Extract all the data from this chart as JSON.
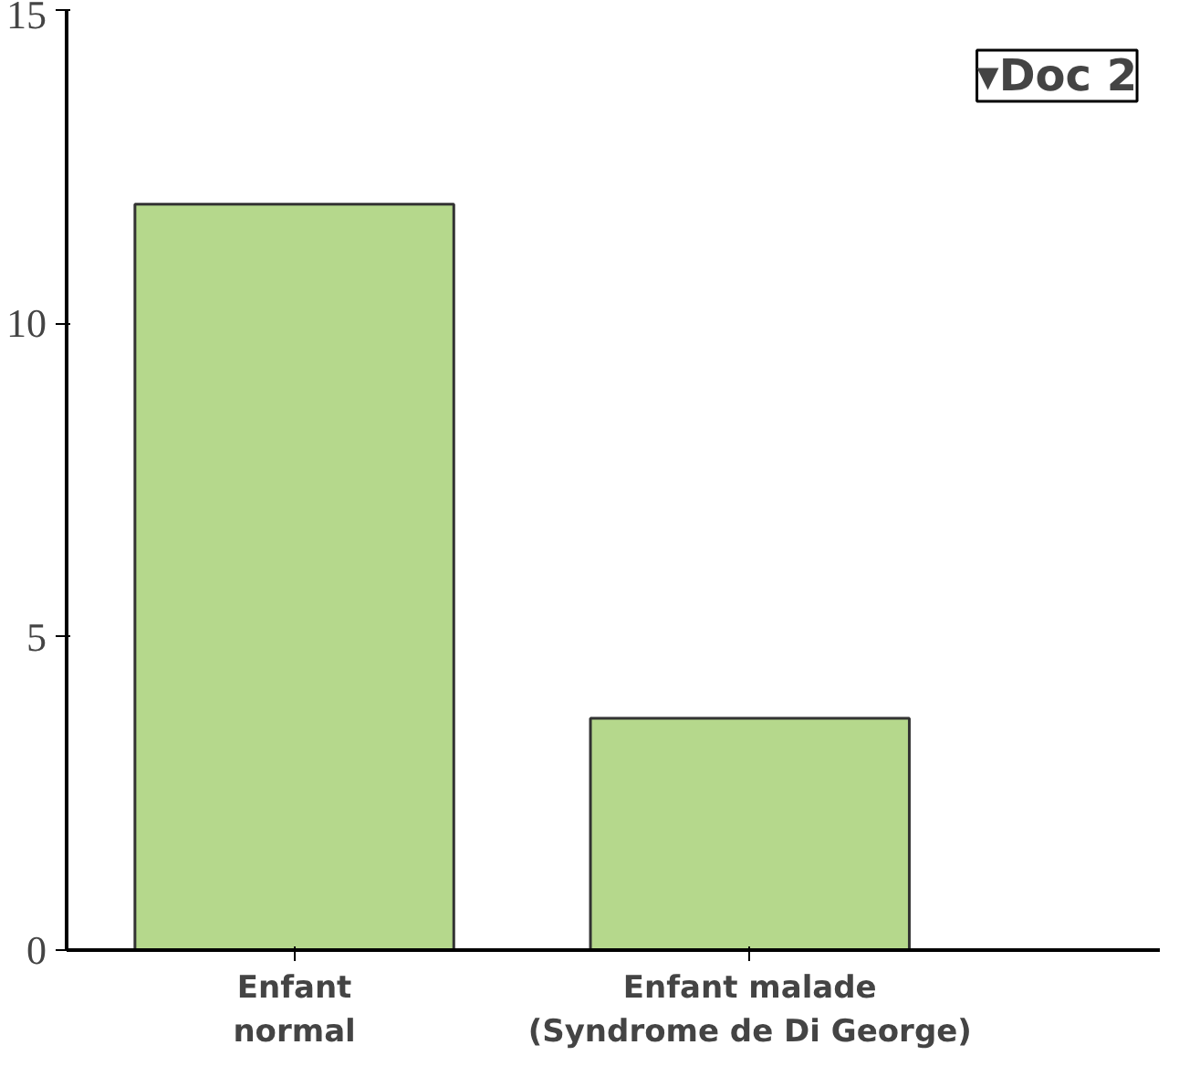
{
  "chart_data": {
    "type": "bar",
    "categories": [
      "Enfant\nnormal",
      "Enfant malade\n(Syndrome de Di George)"
    ],
    "values": [
      11.9,
      3.7
    ],
    "color": "#b5d88c",
    "ylim": [
      0,
      15
    ],
    "yticks": [
      0,
      5,
      10,
      15
    ],
    "grid": false,
    "annotations": [
      "▾Doc 2"
    ]
  }
}
